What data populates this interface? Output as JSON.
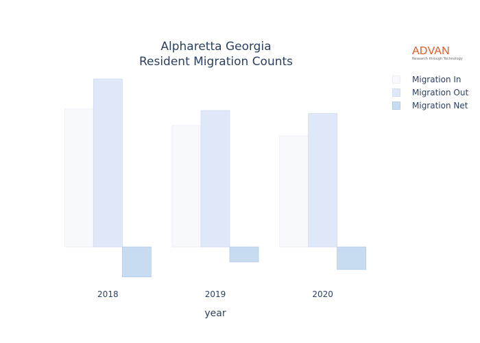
{
  "title": {
    "line1": "Alpharetta Georgia",
    "line2": "Resident Migration Counts"
  },
  "logo": {
    "text": "ADVAN",
    "tagline": "Research through Technology"
  },
  "colors": {
    "migration_in": "#f8f9fd",
    "migration_out": "#dfe8f8",
    "migration_net": "#c7dbf1",
    "text": "#2a3f5f"
  },
  "chart_data": {
    "type": "bar",
    "xlabel": "year",
    "ylabel": "",
    "categories": [
      "2018",
      "2019",
      "2020"
    ],
    "series": [
      {
        "name": "Migration In",
        "values": [
          4600,
          4050,
          3700
        ]
      },
      {
        "name": "Migration Out",
        "values": [
          5600,
          4550,
          4450
        ]
      },
      {
        "name": "Migration Net",
        "values": [
          -1000,
          -500,
          -750
        ]
      }
    ],
    "ylim": [
      -1200,
      6200
    ],
    "grid": false,
    "show_y_ticks": false,
    "legend_position": "top-right"
  }
}
